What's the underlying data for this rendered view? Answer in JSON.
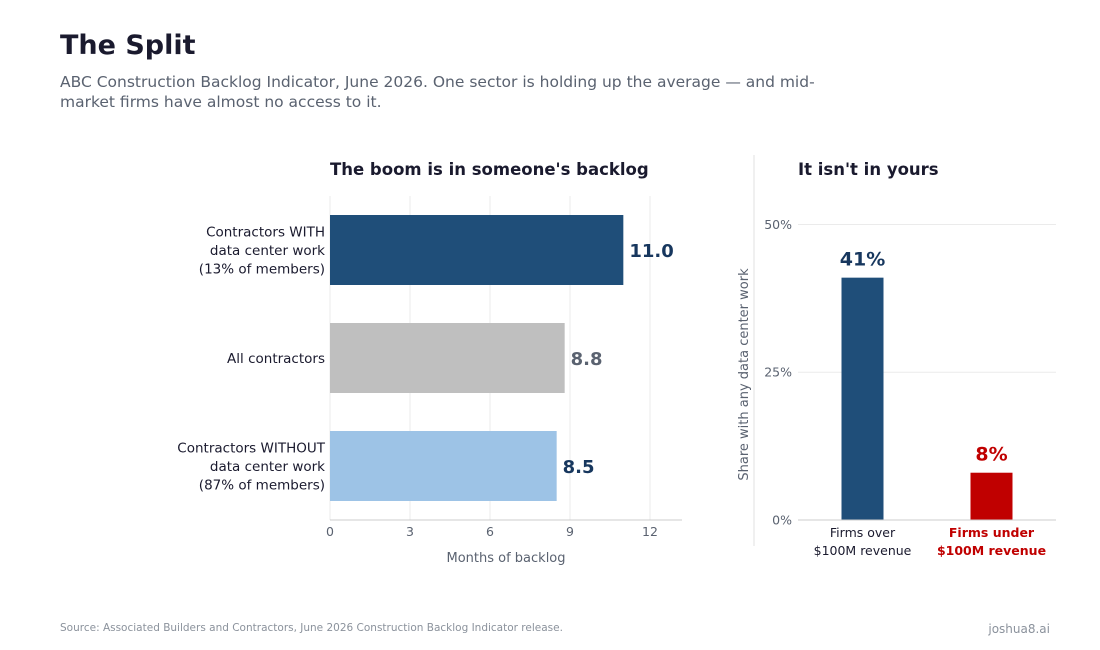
{
  "header": {
    "title": "The Split",
    "subtitle": "ABC Construction Backlog Indicator, June 2026. One sector is holding up the average — and mid-market firms have almost no access to it."
  },
  "chart_data": [
    {
      "type": "bar",
      "orientation": "horizontal",
      "title": "The boom is in someone's backlog",
      "xlabel": "Months of backlog",
      "xlim": [
        0,
        13.2
      ],
      "xticks": [
        0,
        3,
        6,
        9,
        12
      ],
      "grid": true,
      "categories": [
        [
          "Contractors WITH",
          "data center work",
          "(13% of members)"
        ],
        [
          "All contractors"
        ],
        [
          "Contractors WITHOUT",
          "data center work",
          "(87% of members)"
        ]
      ],
      "values": [
        11.0,
        8.8,
        8.5
      ],
      "value_labels": [
        "11.0",
        "8.8",
        "8.5"
      ],
      "colors": [
        "#1f4e79",
        "#bfbfbf",
        "#9dc3e6"
      ],
      "label_colors": [
        "#17375e",
        "#5a6270",
        "#17375e"
      ]
    },
    {
      "type": "bar",
      "title": "It isn't in yours",
      "ylabel": "Share with any data center work",
      "ylim": [
        0,
        56
      ],
      "yticks": [
        0,
        25,
        50
      ],
      "ytick_labels": [
        "0%",
        "25%",
        "50%"
      ],
      "grid": true,
      "categories": [
        [
          "Firms over",
          "$100M revenue"
        ],
        [
          "Firms under",
          "$100M revenue"
        ]
      ],
      "values": [
        41,
        8
      ],
      "value_labels": [
        "41%",
        "8%"
      ],
      "colors": [
        "#1f4e79",
        "#c00000"
      ],
      "label_colors": [
        "#17375e",
        "#c00000"
      ],
      "category_label_colors": [
        "#1a1a2e",
        "#c00000"
      ]
    }
  ],
  "footer": {
    "source": "Source: Associated Builders and Contractors, June 2026 Construction Backlog Indicator release.",
    "credit": "joshua8.ai"
  }
}
